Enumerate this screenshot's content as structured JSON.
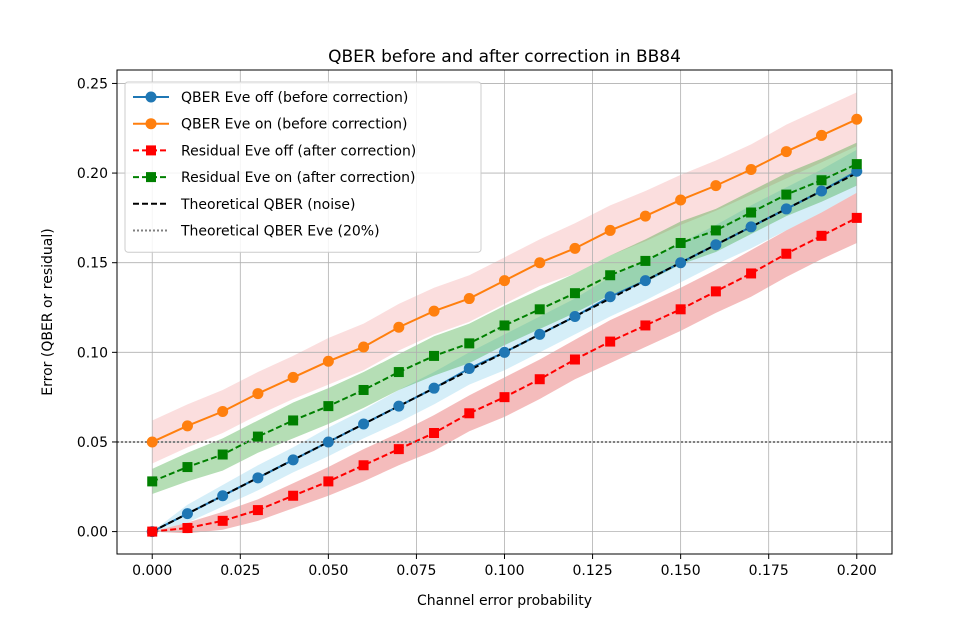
{
  "chart_data": {
    "type": "line",
    "title": "QBER before and after correction in BB84",
    "xlabel": "Channel error probability",
    "ylabel": "Error (QBER or residual)",
    "xlim": [
      -0.01,
      0.21
    ],
    "ylim": [
      -0.0125,
      0.2575
    ],
    "xticks": [
      0.0,
      0.025,
      0.05,
      0.075,
      0.1,
      0.125,
      0.15,
      0.175,
      0.2
    ],
    "xtick_labels": [
      "0.000",
      "0.025",
      "0.050",
      "0.075",
      "0.100",
      "0.125",
      "0.150",
      "0.175",
      "0.200"
    ],
    "yticks": [
      0.0,
      0.05,
      0.1,
      0.15,
      0.2,
      0.25
    ],
    "ytick_labels": [
      "0.00",
      "0.05",
      "0.10",
      "0.15",
      "0.20",
      "0.25"
    ],
    "grid": true,
    "legend_position": "top-left",
    "x": [
      0.0,
      0.01,
      0.02,
      0.03,
      0.04,
      0.05,
      0.06,
      0.07,
      0.08,
      0.09,
      0.1,
      0.11,
      0.12,
      0.13,
      0.14,
      0.15,
      0.16,
      0.17,
      0.18,
      0.19,
      0.2
    ],
    "series": [
      {
        "name": "QBER Eve off (before correction)",
        "color": "#1f77b4",
        "band_color": "#87ceeb",
        "linestyle": "solid",
        "marker": "circle",
        "values": [
          0.0,
          0.01,
          0.02,
          0.03,
          0.04,
          0.05,
          0.06,
          0.07,
          0.08,
          0.091,
          0.1,
          0.11,
          0.12,
          0.131,
          0.14,
          0.15,
          0.16,
          0.17,
          0.18,
          0.19,
          0.201
        ],
        "band_half_width": [
          0.0,
          0.005,
          0.006,
          0.007,
          0.007,
          0.008,
          0.008,
          0.009,
          0.009,
          0.009,
          0.01,
          0.01,
          0.01,
          0.011,
          0.011,
          0.011,
          0.011,
          0.012,
          0.012,
          0.012,
          0.012
        ]
      },
      {
        "name": "QBER Eve on (before correction)",
        "color": "#ff7f0e",
        "band_color": "#f4a0a0",
        "linestyle": "solid",
        "marker": "circle",
        "values": [
          0.05,
          0.059,
          0.067,
          0.077,
          0.086,
          0.095,
          0.103,
          0.114,
          0.123,
          0.13,
          0.14,
          0.15,
          0.158,
          0.168,
          0.176,
          0.185,
          0.193,
          0.202,
          0.212,
          0.221,
          0.23
        ],
        "band_half_width": [
          0.012,
          0.012,
          0.012,
          0.012,
          0.012,
          0.013,
          0.013,
          0.013,
          0.013,
          0.013,
          0.013,
          0.013,
          0.014,
          0.014,
          0.014,
          0.014,
          0.014,
          0.014,
          0.015,
          0.015,
          0.015
        ]
      },
      {
        "name": "Residual Eve off (after correction)",
        "color": "#ff0000",
        "band_color": "#e04040",
        "linestyle": "dashed",
        "marker": "square",
        "values": [
          0.0,
          0.002,
          0.006,
          0.012,
          0.02,
          0.028,
          0.037,
          0.046,
          0.055,
          0.066,
          0.075,
          0.085,
          0.096,
          0.106,
          0.115,
          0.124,
          0.134,
          0.144,
          0.155,
          0.165,
          0.175
        ],
        "band_half_width": [
          0.0,
          0.003,
          0.005,
          0.006,
          0.007,
          0.008,
          0.009,
          0.009,
          0.01,
          0.01,
          0.011,
          0.011,
          0.011,
          0.012,
          0.012,
          0.012,
          0.012,
          0.013,
          0.013,
          0.013,
          0.014
        ]
      },
      {
        "name": "Residual Eve on (after correction)",
        "color": "#008000",
        "band_color": "#2ca02c",
        "linestyle": "dashed",
        "marker": "square",
        "values": [
          0.028,
          0.036,
          0.043,
          0.053,
          0.062,
          0.07,
          0.079,
          0.089,
          0.098,
          0.105,
          0.115,
          0.124,
          0.133,
          0.143,
          0.151,
          0.161,
          0.168,
          0.178,
          0.188,
          0.196,
          0.205
        ],
        "band_half_width": [
          0.007,
          0.008,
          0.009,
          0.009,
          0.01,
          0.01,
          0.01,
          0.01,
          0.011,
          0.011,
          0.011,
          0.011,
          0.011,
          0.011,
          0.012,
          0.012,
          0.012,
          0.012,
          0.012,
          0.012,
          0.012
        ]
      },
      {
        "name": "Theoretical QBER (noise)",
        "color": "#000000",
        "linestyle": "dashed",
        "marker": "none",
        "values": [
          0.0,
          0.01,
          0.02,
          0.03,
          0.04,
          0.05,
          0.06,
          0.07,
          0.08,
          0.09,
          0.1,
          0.11,
          0.12,
          0.13,
          0.14,
          0.15,
          0.16,
          0.17,
          0.18,
          0.19,
          0.2
        ]
      },
      {
        "name": "Theoretical QBER Eve (20%)",
        "color": "#808080",
        "linestyle": "dotted",
        "marker": "none",
        "horizontal": true,
        "y_value": 0.05
      }
    ]
  }
}
